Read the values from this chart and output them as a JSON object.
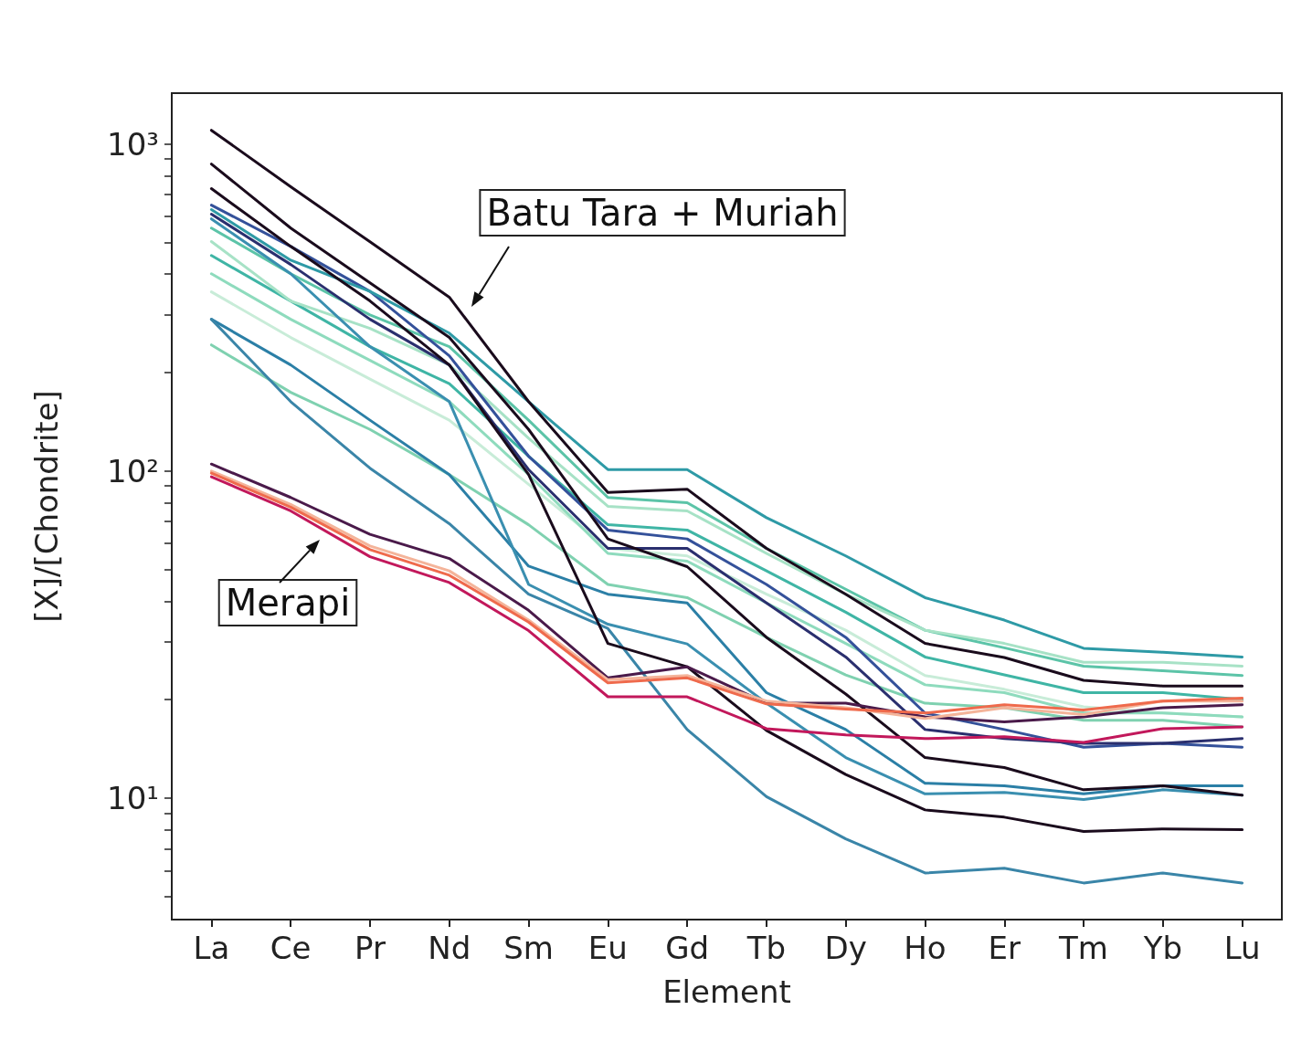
{
  "chart_data": {
    "type": "line",
    "xlabel": "Element",
    "ylabel": "[X]/[Chondrite]",
    "categories": [
      "La",
      "Ce",
      "Pr",
      "Nd",
      "Sm",
      "Eu",
      "Gd",
      "Tb",
      "Dy",
      "Ho",
      "Er",
      "Tm",
      "Yb",
      "Lu"
    ],
    "log": "y",
    "ylim": [
      4.25,
      1430
    ],
    "yticks": [
      {
        "value": 5,
        "label": null
      },
      {
        "value": 6,
        "label": null
      },
      {
        "value": 7,
        "label": null
      },
      {
        "value": 8,
        "label": null
      },
      {
        "value": 9,
        "label": null
      },
      {
        "value": 10,
        "label": "10¹"
      },
      {
        "value": 20,
        "label": null
      },
      {
        "value": 30,
        "label": null
      },
      {
        "value": 40,
        "label": null
      },
      {
        "value": 50,
        "label": null
      },
      {
        "value": 60,
        "label": null
      },
      {
        "value": 70,
        "label": null
      },
      {
        "value": 80,
        "label": null
      },
      {
        "value": 90,
        "label": null
      },
      {
        "value": 100,
        "label": "10²"
      },
      {
        "value": 200,
        "label": null
      },
      {
        "value": 300,
        "label": null
      },
      {
        "value": 400,
        "label": null
      },
      {
        "value": 500,
        "label": null
      },
      {
        "value": 600,
        "label": null
      },
      {
        "value": 700,
        "label": null
      },
      {
        "value": 800,
        "label": null
      },
      {
        "value": 900,
        "label": null
      },
      {
        "value": 1000,
        "label": "10³"
      }
    ],
    "series": [
      {
        "color": "#7fd1b0",
        "values": [
          243,
          174,
          134,
          97.5,
          68.5,
          45,
          41,
          31,
          23.8,
          19.5,
          18.9,
          17.3,
          17.3,
          16.5
        ]
      },
      {
        "color": "#3fb5a5",
        "values": [
          456,
          331,
          240,
          185,
          111,
          68.5,
          66,
          49.5,
          37,
          27,
          23.8,
          21,
          21,
          20
        ]
      },
      {
        "color": "#5cc4a8",
        "values": [
          553,
          401,
          300,
          240,
          143,
          83,
          80,
          58,
          43.5,
          32.6,
          28.8,
          25.3,
          24.5,
          23.7
        ]
      },
      {
        "color": "#c8ecd8",
        "values": [
          353,
          256,
          191,
          143,
          91,
          58,
          55,
          42,
          32.6,
          23.7,
          21.5,
          19,
          18.2,
          17.7
        ]
      },
      {
        "color": "#a7e2c6",
        "values": [
          503,
          331,
          273,
          211,
          126,
          78,
          75.5,
          56,
          42,
          32.6,
          29.7,
          26,
          26,
          25.3
        ]
      },
      {
        "color": "#8edbbd",
        "values": [
          401,
          291,
          218,
          163,
          97.5,
          56,
          53,
          39.5,
          29.7,
          22.2,
          21,
          18.2,
          18.2,
          17.7
        ]
      },
      {
        "color": "#34519a",
        "values": [
          650,
          486,
          354,
          225,
          111,
          66,
          62,
          45,
          31,
          18.2,
          16.2,
          14.3,
          14.7,
          14.3
        ]
      },
      {
        "color": "#2b7fa6",
        "values": [
          291,
          211,
          143,
          97.5,
          51.2,
          42,
          39.5,
          21,
          16.2,
          11.1,
          10.9,
          10.3,
          10.9,
          10.9
        ]
      },
      {
        "color": "#3a8fb0",
        "values": [
          590,
          401,
          240,
          163,
          45,
          34,
          29.6,
          19.5,
          13.3,
          10.3,
          10.4,
          9.9,
          10.6,
          10.2
        ]
      },
      {
        "color": "#2a2f6e",
        "values": [
          610,
          428,
          291,
          211,
          101,
          58,
          58,
          39.5,
          27,
          16.2,
          15.2,
          14.7,
          14.7,
          15.2
        ]
      },
      {
        "color": "#3a85a8",
        "values": [
          291,
          163,
          102,
          69,
          42,
          33,
          16.2,
          10.1,
          7.5,
          5.9,
          6.1,
          5.5,
          5.9,
          5.5
        ]
      },
      {
        "color": "#2e9aa6",
        "values": [
          630,
          441,
          354,
          264,
          163,
          101,
          101,
          72,
          55,
          41,
          35,
          28.7,
          27.9,
          27
        ]
      },
      {
        "color": "#1a0b1c",
        "values": [
          1101,
          740,
          502,
          340,
          163,
          86,
          88,
          58,
          42,
          29.7,
          26.9,
          22.9,
          22,
          22
        ]
      },
      {
        "color": "#1a0b1c",
        "values": [
          868,
          553,
          376,
          256,
          134,
          62,
          51,
          31,
          20.8,
          13.3,
          12.4,
          10.6,
          10.9,
          10.2
        ]
      },
      {
        "color": "#1a0b1c",
        "values": [
          730,
          486,
          331,
          211,
          97.5,
          29.7,
          25.2,
          16.1,
          11.8,
          9.2,
          8.74,
          7.9,
          8.05,
          8.0
        ]
      },
      {
        "color": "#4a1a4a",
        "values": [
          105,
          83,
          64,
          54,
          37.5,
          23.3,
          25.2,
          19.5,
          19.5,
          17.7,
          17.1,
          17.7,
          18.9,
          19.3
        ]
      },
      {
        "color": "#c2185b",
        "values": [
          96,
          75.5,
          54.7,
          45.6,
          32.5,
          20.4,
          20.4,
          16.3,
          15.6,
          15.2,
          15.4,
          14.8,
          16.3,
          16.5
        ]
      },
      {
        "color": "#f4b49a",
        "values": [
          100,
          79,
          59,
          49.5,
          35,
          23,
          23.7,
          19.8,
          18.9,
          17.5,
          18.9,
          18,
          19.8,
          19.8
        ]
      },
      {
        "color": "#ef6a4c",
        "values": [
          98.5,
          77.5,
          57.5,
          48,
          34.5,
          22.5,
          23.3,
          19.4,
          18.7,
          18.2,
          19.3,
          18.6,
          19.8,
          20.2
        ]
      }
    ],
    "annotations": [
      "Batu Tara + Muriah",
      "Merapi"
    ]
  }
}
